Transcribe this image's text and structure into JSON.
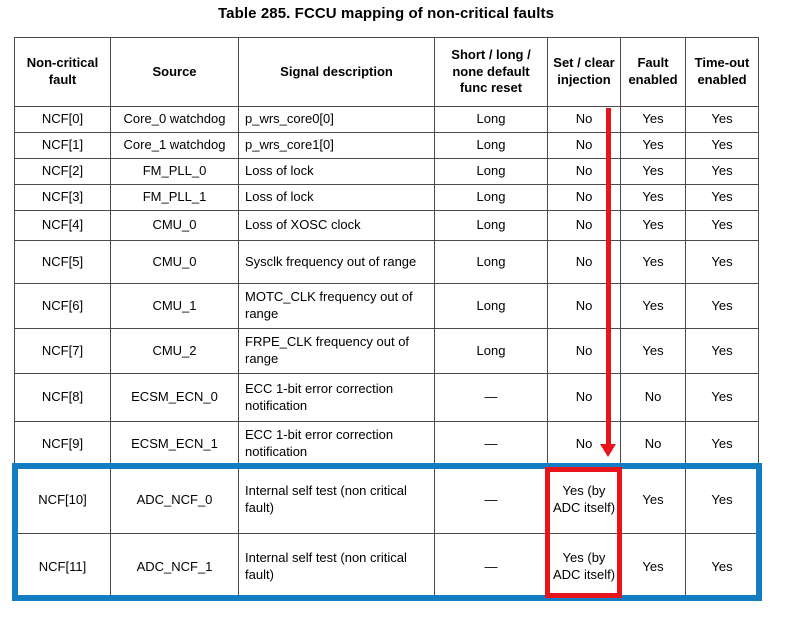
{
  "title": "Table 285. FCCU mapping of non-critical faults",
  "table": {
    "headers": [
      "Non-critical fault",
      "Source",
      "Signal description",
      "Short / long / none default func reset",
      "Set / clear injection",
      "Fault enabled",
      "Time-out enabled"
    ],
    "rows": [
      [
        "NCF[0]",
        "Core_0 watchdog",
        "p_wrs_core0[0]",
        "Long",
        "No",
        "Yes",
        "Yes"
      ],
      [
        "NCF[1]",
        "Core_1 watchdog",
        "p_wrs_core1[0]",
        "Long",
        "No",
        "Yes",
        "Yes"
      ],
      [
        "NCF[2]",
        "FM_PLL_0",
        "Loss of lock",
        "Long",
        "No",
        "Yes",
        "Yes"
      ],
      [
        "NCF[3]",
        "FM_PLL_1",
        "Loss of lock",
        "Long",
        "No",
        "Yes",
        "Yes"
      ],
      [
        "NCF[4]",
        "CMU_0",
        "Loss of XOSC clock",
        "Long",
        "No",
        "Yes",
        "Yes"
      ],
      [
        "NCF[5]",
        "CMU_0",
        "Sysclk frequency out of range",
        "Long",
        "No",
        "Yes",
        "Yes"
      ],
      [
        "NCF[6]",
        "CMU_1",
        "MOTC_CLK frequency out of range",
        "Long",
        "No",
        "Yes",
        "Yes"
      ],
      [
        "NCF[7]",
        "CMU_2",
        "FRPE_CLK frequency out of range",
        "Long",
        "No",
        "Yes",
        "Yes"
      ],
      [
        "NCF[8]",
        "ECSM_ECN_0",
        "ECC 1-bit error correction notification",
        "—",
        "No",
        "No",
        "Yes"
      ],
      [
        "NCF[9]",
        "ECSM_ECN_1",
        "ECC 1-bit error correction notification",
        "—",
        "No",
        "No",
        "Yes"
      ],
      [
        "NCF[10]",
        "ADC_NCF_0",
        "Internal self test (non critical fault)",
        "—",
        "Yes (by ADC itself)",
        "Yes",
        "Yes"
      ],
      [
        "NCF[11]",
        "ADC_NCF_1",
        "Internal self test (non critical fault)",
        "—",
        "Yes (by ADC itself)",
        "Yes",
        "Yes"
      ]
    ]
  },
  "colors": {
    "annotation-red": "#e8141b",
    "annotation-blue": "#147dc2",
    "table-border": "#4b4b4b"
  }
}
